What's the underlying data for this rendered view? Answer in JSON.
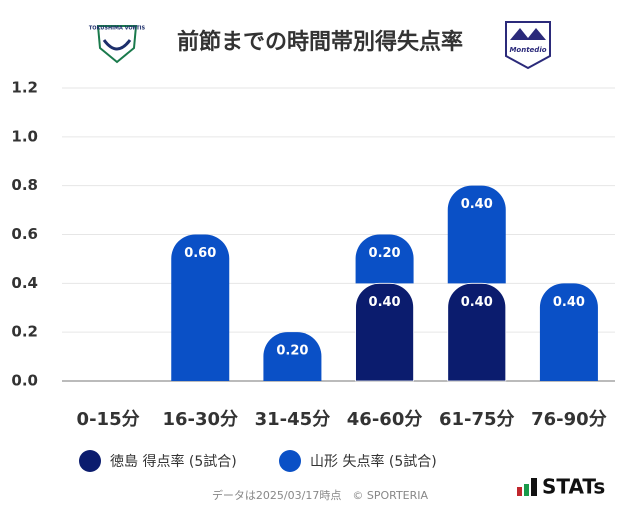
{
  "chart_data": {
    "type": "bar",
    "stacked": true,
    "title": "前節までの時間帯別得失点率",
    "categories": [
      "0-15分",
      "16-30分",
      "31-45分",
      "46-60分",
      "61-75分",
      "76-90分"
    ],
    "series": [
      {
        "name": "徳島 得点率 (5試合)",
        "color": "#0b1c6e",
        "values": [
          0,
          0,
          0,
          0.4,
          0.4,
          0
        ],
        "value_labels": [
          null,
          null,
          null,
          "0.40",
          "0.40",
          null
        ]
      },
      {
        "name": "山形 失点率 (5試合)",
        "color": "#0a50c6",
        "values": [
          0,
          0.6,
          0.2,
          0.2,
          0.4,
          0.4
        ],
        "value_labels": [
          null,
          "0.60",
          "0.20",
          "0.20",
          "0.40",
          "0.40"
        ]
      }
    ],
    "ylim": [
      0,
      1.2
    ],
    "yticks": [
      {
        "value": 0,
        "label": "0.0"
      },
      {
        "value": 0.2,
        "label": "0.2"
      },
      {
        "value": 0.4,
        "label": "0.4"
      },
      {
        "value": 0.6,
        "label": "0.6"
      },
      {
        "value": 0.8,
        "label": "0.8"
      },
      {
        "value": 1,
        "label": "1.0"
      },
      {
        "value": 1.2,
        "label": "1.2"
      }
    ],
    "grid": true
  },
  "logos": {
    "home": "TOKUSHIMA VORTIS",
    "away": "Montedio"
  },
  "footer": {
    "note": "データは2025/03/17時点　© SPORTERIA",
    "brand": "STATs"
  }
}
